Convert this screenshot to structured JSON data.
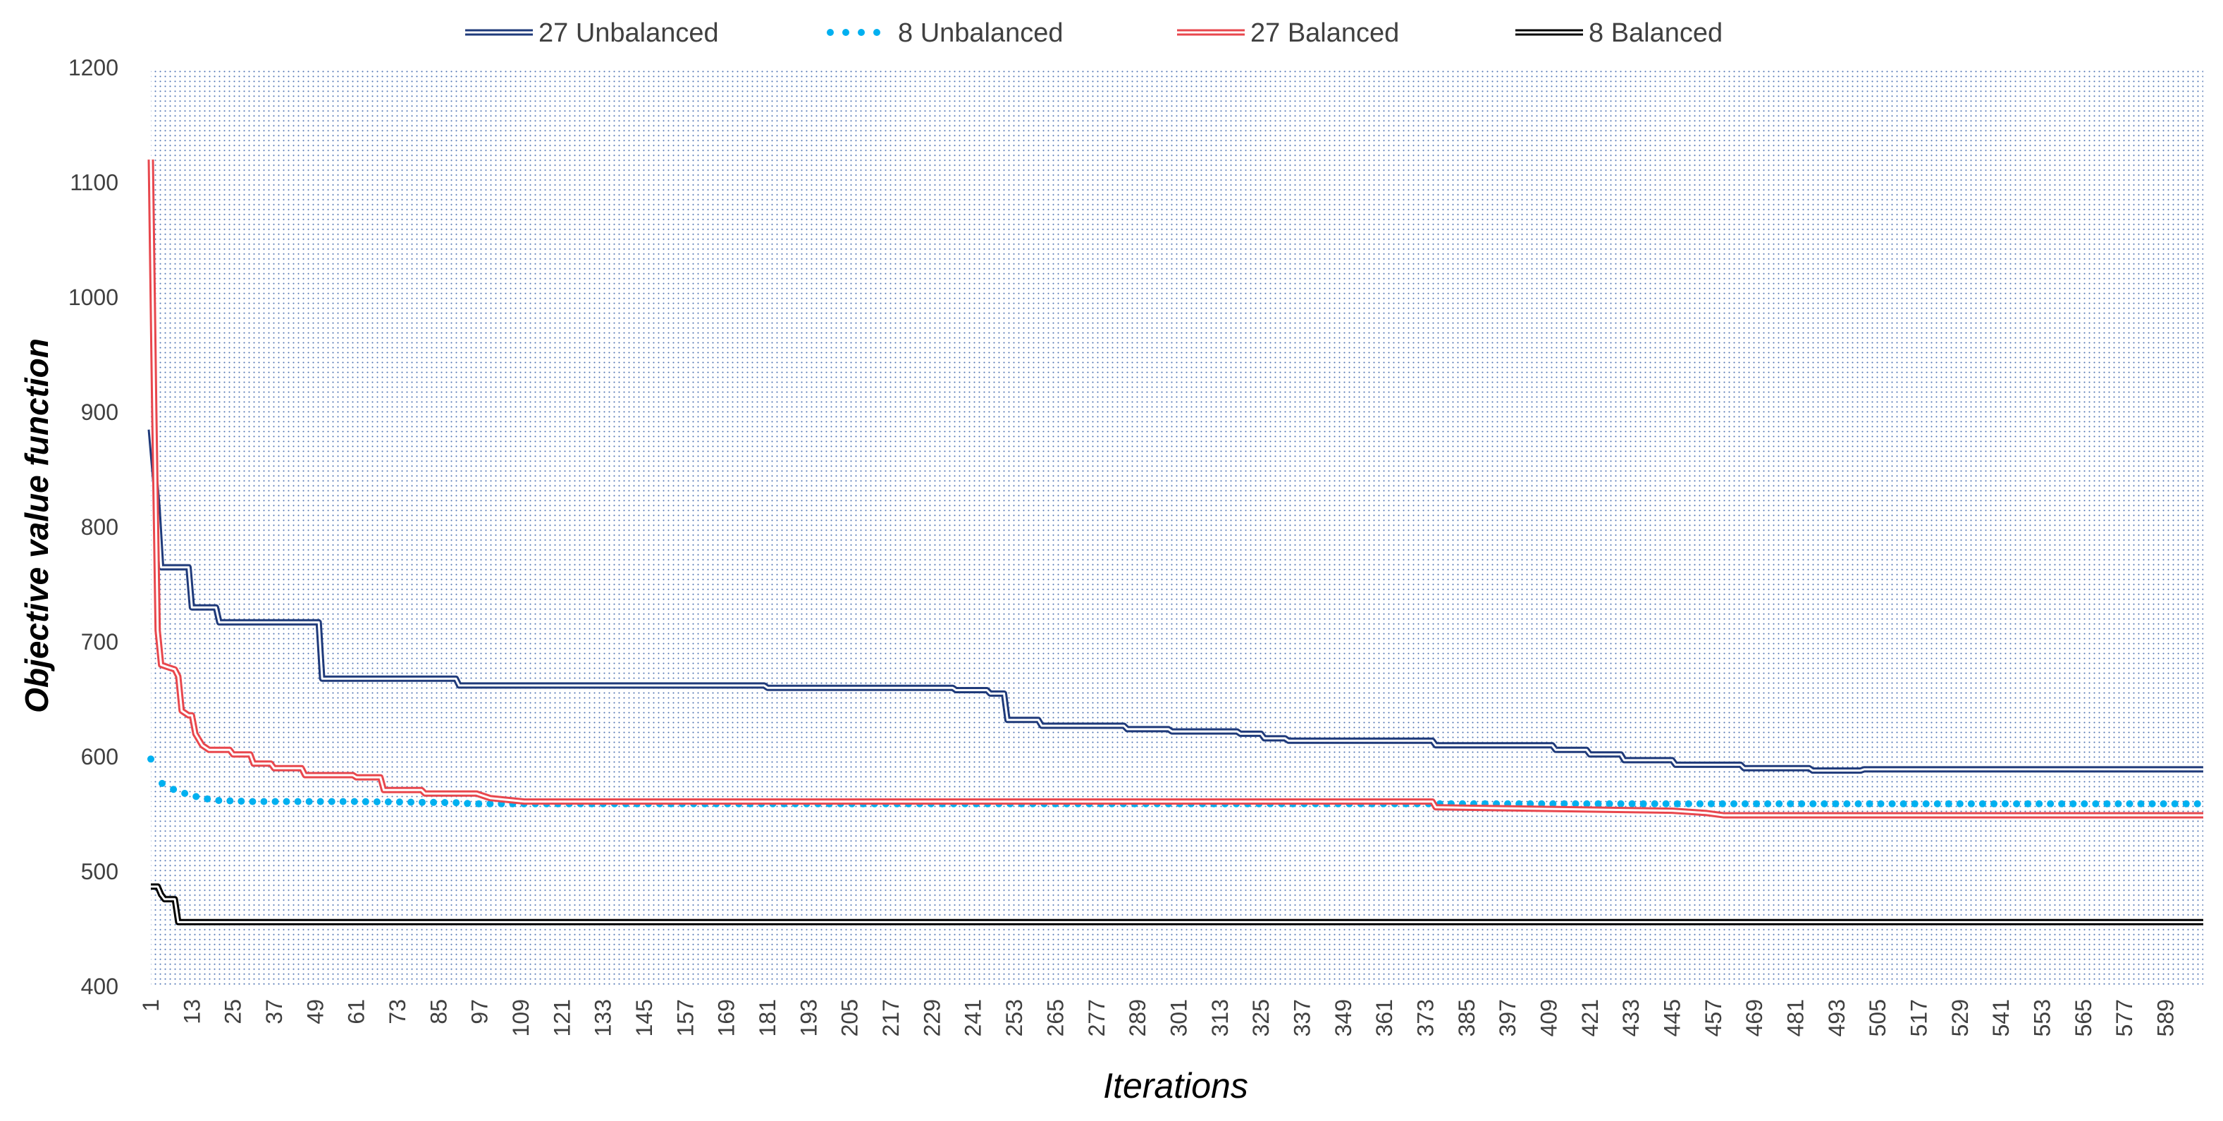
{
  "chart_data": {
    "type": "line",
    "xlabel": "Iterations",
    "ylabel": "Objective value function",
    "ylim": [
      400,
      1200
    ],
    "yticks": [
      400,
      500,
      600,
      700,
      800,
      900,
      1000,
      1100,
      1200
    ],
    "xlim": [
      1,
      600
    ],
    "xticks": [
      1,
      13,
      25,
      37,
      49,
      61,
      73,
      85,
      97,
      109,
      121,
      133,
      145,
      157,
      169,
      181,
      193,
      205,
      217,
      229,
      241,
      253,
      265,
      277,
      289,
      301,
      313,
      325,
      337,
      349,
      361,
      373,
      385,
      397,
      409,
      421,
      433,
      445,
      457,
      469,
      481,
      493,
      505,
      517,
      529,
      541,
      553,
      565,
      577,
      589
    ],
    "grid": "dotted",
    "legend_position": "top",
    "series": [
      {
        "name": "27 Unbalanced",
        "style": "double",
        "color": "#1f3a7a",
        "x": [
          1,
          2,
          3,
          4,
          12,
          13,
          20,
          21,
          50,
          51,
          90,
          91,
          180,
          181,
          235,
          236,
          245,
          246,
          250,
          251,
          260,
          261,
          285,
          286,
          298,
          299,
          318,
          319,
          325,
          326,
          332,
          333,
          375,
          376,
          410,
          411,
          420,
          421,
          430,
          431,
          445,
          446,
          465,
          466,
          485,
          486,
          500,
          501,
          600
        ],
        "values": [
          885,
          850,
          815,
          765,
          765,
          730,
          730,
          717,
          717,
          668,
          668,
          662,
          662,
          660,
          660,
          658,
          658,
          655,
          655,
          632,
          632,
          627,
          627,
          624,
          624,
          622,
          622,
          620,
          620,
          616,
          616,
          614,
          614,
          610,
          610,
          606,
          606,
          602,
          602,
          597,
          597,
          593,
          593,
          590,
          590,
          588,
          588,
          589,
          589
        ]
      },
      {
        "name": "8 Unbalanced",
        "style": "dotted",
        "color": "#00b0f0",
        "x": [
          1,
          2,
          3,
          5,
          8,
          12,
          16,
          20,
          30,
          60,
          90,
          95,
          600
        ],
        "values": [
          598,
          588,
          580,
          575,
          571,
          567,
          564,
          562,
          561,
          561,
          560,
          559,
          559
        ]
      },
      {
        "name": "27 Balanced",
        "style": "double",
        "color": "#e8474d",
        "x": [
          1,
          2,
          3,
          4,
          6,
          8,
          9,
          10,
          12,
          13,
          14,
          16,
          18,
          24,
          25,
          30,
          31,
          36,
          37,
          45,
          46,
          60,
          61,
          68,
          69,
          80,
          81,
          96,
          100,
          110,
          375,
          376,
          445,
          455,
          460,
          600
        ],
        "values": [
          1120,
          900,
          710,
          680,
          678,
          676,
          670,
          640,
          636,
          636,
          620,
          610,
          606,
          606,
          602,
          602,
          594,
          594,
          590,
          590,
          584,
          584,
          582,
          582,
          571,
          571,
          568,
          568,
          564,
          561,
          561,
          556,
          553,
          551,
          549,
          549
        ]
      },
      {
        "name": "8 Balanced",
        "style": "double",
        "color": "#000000",
        "x": [
          1,
          3,
          4,
          5,
          8,
          9,
          600
        ],
        "values": [
          487,
          487,
          480,
          476,
          476,
          456,
          456
        ]
      }
    ]
  }
}
